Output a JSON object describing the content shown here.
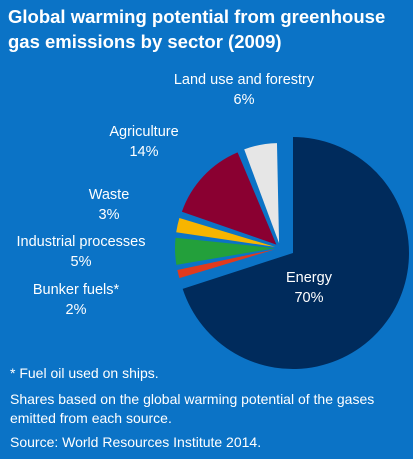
{
  "title": "Global warming potential from greenhouse gas emissions by sector (2009)",
  "chart_data": {
    "type": "pie",
    "title": "Global warming potential from greenhouse gas emissions by sector (2009)",
    "slices": [
      {
        "label": "Energy",
        "value": 70,
        "value_label": "70%",
        "color": "#002b5c"
      },
      {
        "label": "Bunker fuels*",
        "value": 2,
        "value_label": "2%",
        "color": "#e03a1e"
      },
      {
        "label": "Industrial processes",
        "value": 5,
        "value_label": "5%",
        "color": "#23a03b"
      },
      {
        "label": "Waste",
        "value": 3,
        "value_label": "3%",
        "color": "#f7b500"
      },
      {
        "label": "Agriculture",
        "value": 14,
        "value_label": "14%",
        "color": "#8a0031"
      },
      {
        "label": "Land use and forestry",
        "value": 6,
        "value_label": "6%",
        "color": "#e6e6e6"
      }
    ]
  },
  "footnotes": {
    "asterisk": "* Fuel oil used on ships.",
    "shares": "Shares based on the global warming potential of the gases emitted from each source.",
    "source": "Source: World Resources Institute 2014."
  }
}
